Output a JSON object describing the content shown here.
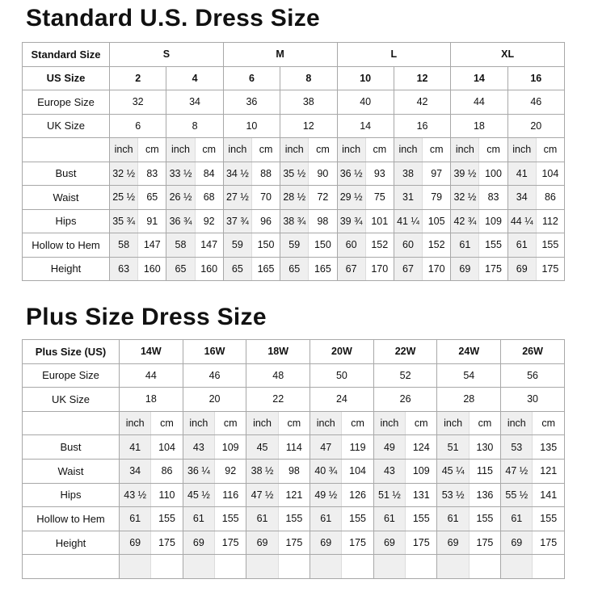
{
  "standard": {
    "title": "Standard U.S. Dress Size",
    "header_rows": [
      {
        "label": "Standard Size",
        "cells": [
          "S",
          "M",
          "L",
          "XL"
        ]
      },
      {
        "label": "US Size",
        "cells": [
          "2",
          "4",
          "6",
          "8",
          "10",
          "12",
          "14",
          "16"
        ]
      },
      {
        "label": "Europe Size",
        "cells": [
          "32",
          "34",
          "36",
          "38",
          "40",
          "42",
          "44",
          "46"
        ]
      },
      {
        "label": "UK Size",
        "cells": [
          "6",
          "8",
          "10",
          "12",
          "14",
          "16",
          "18",
          "20"
        ]
      }
    ],
    "units": [
      "inch",
      "cm"
    ],
    "rows": [
      {
        "label": "Bust",
        "cells": [
          "32 ½",
          "83",
          "33 ½",
          "84",
          "34 ½",
          "88",
          "35 ½",
          "90",
          "36 ½",
          "93",
          "38",
          "97",
          "39 ½",
          "100",
          "41",
          "104"
        ]
      },
      {
        "label": "Waist",
        "cells": [
          "25 ½",
          "65",
          "26 ½",
          "68",
          "27 ½",
          "70",
          "28 ½",
          "72",
          "29 ½",
          "75",
          "31",
          "79",
          "32 ½",
          "83",
          "34",
          "86"
        ]
      },
      {
        "label": "Hips",
        "cells": [
          "35 ¾",
          "91",
          "36 ¾",
          "92",
          "37 ¾",
          "96",
          "38 ¾",
          "98",
          "39 ¾",
          "101",
          "41 ¼",
          "105",
          "42 ¾",
          "109",
          "44 ¼",
          "112"
        ]
      },
      {
        "label": "Hollow to Hem",
        "cells": [
          "58",
          "147",
          "58",
          "147",
          "59",
          "150",
          "59",
          "150",
          "60",
          "152",
          "60",
          "152",
          "61",
          "155",
          "61",
          "155"
        ]
      },
      {
        "label": "Height",
        "cells": [
          "63",
          "160",
          "65",
          "160",
          "65",
          "165",
          "65",
          "165",
          "67",
          "170",
          "67",
          "170",
          "69",
          "175",
          "69",
          "175"
        ]
      }
    ]
  },
  "plus": {
    "title": "Plus Size Dress Size",
    "header_rows": [
      {
        "label": "Plus Size (US)",
        "cells": [
          "14W",
          "16W",
          "18W",
          "20W",
          "22W",
          "24W",
          "26W"
        ]
      },
      {
        "label": "Europe Size",
        "cells": [
          "44",
          "46",
          "48",
          "50",
          "52",
          "54",
          "56"
        ]
      },
      {
        "label": "UK Size",
        "cells": [
          "18",
          "20",
          "22",
          "24",
          "26",
          "28",
          "30"
        ]
      }
    ],
    "units": [
      "inch",
      "cm"
    ],
    "rows": [
      {
        "label": "Bust",
        "cells": [
          "41",
          "104",
          "43",
          "109",
          "45",
          "114",
          "47",
          "119",
          "49",
          "124",
          "51",
          "130",
          "53",
          "135"
        ]
      },
      {
        "label": "Waist",
        "cells": [
          "34",
          "86",
          "36 ¼",
          "92",
          "38 ½",
          "98",
          "40 ¾",
          "104",
          "43",
          "109",
          "45 ¼",
          "115",
          "47 ½",
          "121"
        ]
      },
      {
        "label": "Hips",
        "cells": [
          "43 ½",
          "110",
          "45 ½",
          "116",
          "47 ½",
          "121",
          "49 ½",
          "126",
          "51 ½",
          "131",
          "53 ½",
          "136",
          "55 ½",
          "141"
        ]
      },
      {
        "label": "Hollow to Hem",
        "cells": [
          "61",
          "155",
          "61",
          "155",
          "61",
          "155",
          "61",
          "155",
          "61",
          "155",
          "61",
          "155",
          "61",
          "155"
        ]
      },
      {
        "label": "Height",
        "cells": [
          "69",
          "175",
          "69",
          "175",
          "69",
          "175",
          "69",
          "175",
          "69",
          "175",
          "69",
          "175",
          "69",
          "175"
        ]
      }
    ]
  }
}
